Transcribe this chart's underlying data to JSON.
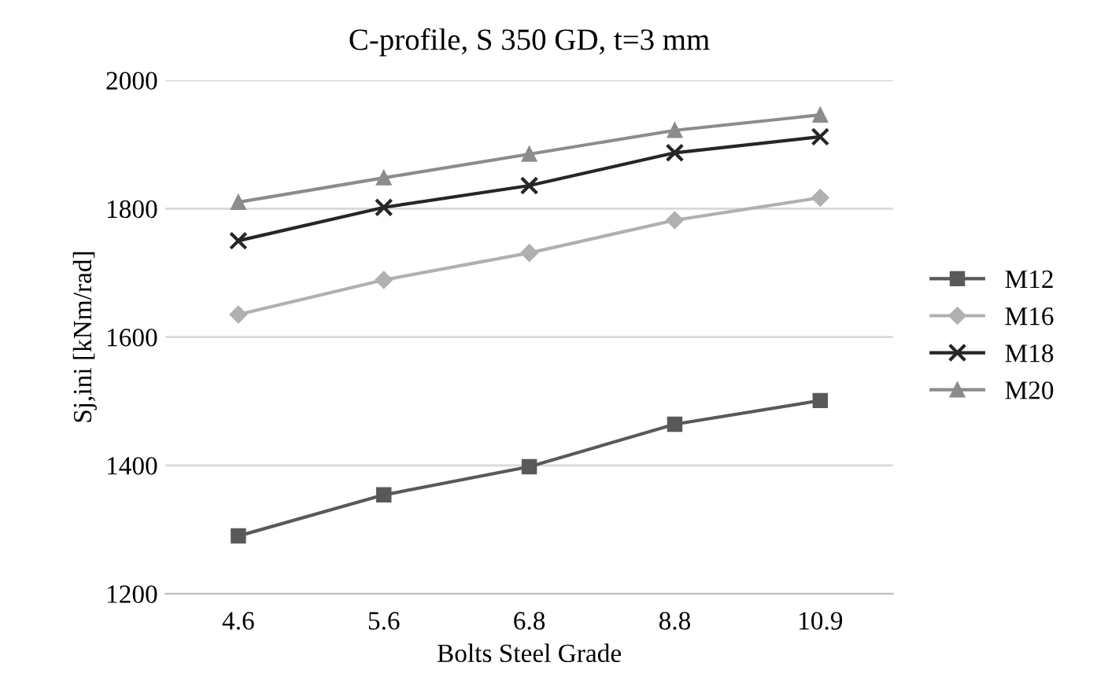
{
  "chart_data": {
    "type": "line",
    "title": "C-profile, S 350 GD, t=3 mm",
    "xlabel": "Bolts Steel Grade",
    "ylabel": "Sj,ini [kNm/rad]",
    "categories": [
      "4.6",
      "5.6",
      "6.8",
      "8.8",
      "10.9"
    ],
    "series": [
      {
        "name": "M12",
        "color": "#595959",
        "marker": "square",
        "values": [
          1290,
          1354,
          1398,
          1464,
          1501
        ]
      },
      {
        "name": "M16",
        "color": "#b0b0b0",
        "marker": "diamond",
        "values": [
          1635,
          1689,
          1731,
          1782,
          1817
        ]
      },
      {
        "name": "M18",
        "color": "#262626",
        "marker": "cross",
        "values": [
          1750,
          1802,
          1836,
          1887,
          1912
        ]
      },
      {
        "name": "M20",
        "color": "#8c8c8c",
        "marker": "triangle",
        "values": [
          1810,
          1848,
          1885,
          1922,
          1946
        ]
      }
    ],
    "ylim": [
      1200,
      2000
    ],
    "yticks": [
      1200,
      1400,
      1600,
      1800,
      2000
    ],
    "grid": "y",
    "legend": "right",
    "line_style": "solid"
  }
}
